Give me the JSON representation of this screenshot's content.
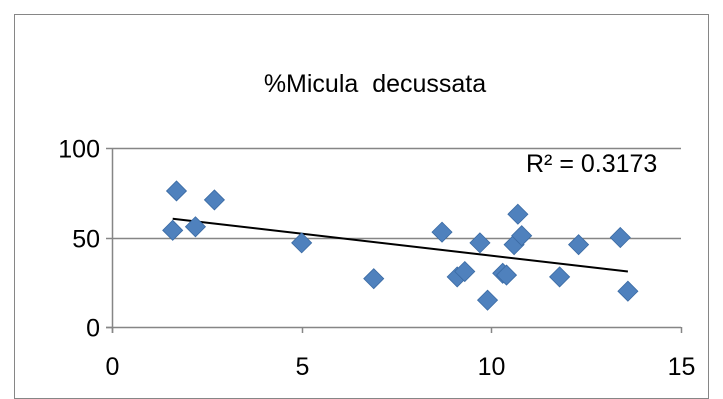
{
  "chart_data": {
    "type": "scatter",
    "title": "%Micula  decussata",
    "xlabel": "",
    "ylabel": "",
    "xlim": [
      0,
      15
    ],
    "ylim": [
      0,
      100
    ],
    "x_ticks": [
      "0",
      "5",
      "10",
      "15"
    ],
    "y_ticks": [
      "0",
      "50",
      "100"
    ],
    "grid": "horizontal",
    "legend": "none",
    "marker": "diamond",
    "annotation": "R² = 0.3173",
    "trendline": {
      "type": "linear",
      "x_start": 1.6,
      "y_start": 60.5,
      "x_end": 13.6,
      "y_end": 31.0
    },
    "series": [
      {
        "points": [
          {
            "x": 1.6,
            "y": 54
          },
          {
            "x": 1.7,
            "y": 76
          },
          {
            "x": 2.2,
            "y": 56
          },
          {
            "x": 2.7,
            "y": 71
          },
          {
            "x": 5.0,
            "y": 47
          },
          {
            "x": 6.9,
            "y": 27
          },
          {
            "x": 8.7,
            "y": 53
          },
          {
            "x": 9.1,
            "y": 28
          },
          {
            "x": 9.3,
            "y": 31
          },
          {
            "x": 9.7,
            "y": 47
          },
          {
            "x": 9.9,
            "y": 15
          },
          {
            "x": 10.3,
            "y": 30
          },
          {
            "x": 10.4,
            "y": 29
          },
          {
            "x": 10.6,
            "y": 46
          },
          {
            "x": 10.7,
            "y": 63
          },
          {
            "x": 10.8,
            "y": 51
          },
          {
            "x": 11.8,
            "y": 28
          },
          {
            "x": 12.3,
            "y": 46
          },
          {
            "x": 13.4,
            "y": 50
          },
          {
            "x": 13.6,
            "y": 20
          }
        ]
      }
    ],
    "colors": {
      "marker": "#4F81BD",
      "trendline": "#000000",
      "grid": "#868686",
      "axis": "#868686",
      "frame": "#868686"
    }
  }
}
